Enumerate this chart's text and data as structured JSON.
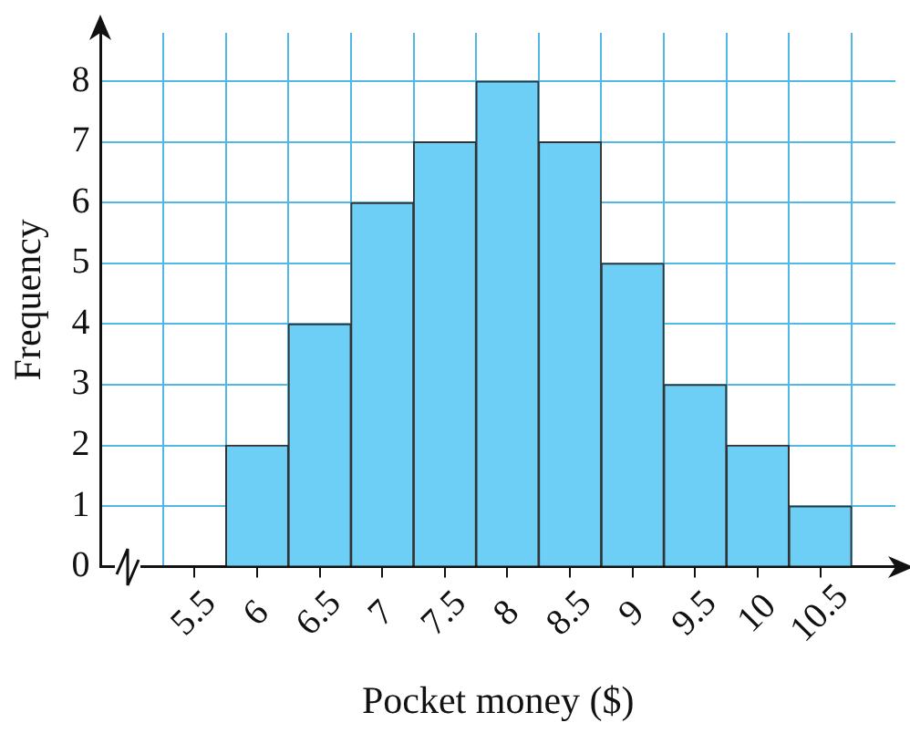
{
  "chart_data": {
    "type": "histogram",
    "xlabel": "Pocket money ($)",
    "ylabel": "Frequency",
    "bins": [
      5.75,
      6.25,
      6.75,
      7.25,
      7.75,
      8.25,
      8.75,
      9.25,
      9.75,
      10.25,
      10.75
    ],
    "values": [
      2,
      4,
      6,
      7,
      8,
      7,
      5,
      3,
      2,
      1
    ],
    "color": "#6dcff6",
    "xlim": [
      4.75,
      11.1
    ],
    "xticks": [
      {
        "value": 5.25,
        "label": null
      },
      5.5,
      {
        "value": 5.75,
        "label": null
      },
      6,
      {
        "value": 6.25,
        "label": null
      },
      6.5,
      {
        "value": 6.75,
        "label": null
      },
      7,
      {
        "value": 7.25,
        "label": null
      },
      7.5,
      {
        "value": 7.75,
        "label": null
      },
      8,
      {
        "value": 8.25,
        "label": null
      },
      8.5,
      {
        "value": 8.75,
        "label": null
      },
      9,
      {
        "value": 9.25,
        "label": null
      },
      9.5,
      {
        "value": 9.75,
        "label": null
      },
      10,
      {
        "value": 10.25,
        "label": null
      },
      10.5,
      {
        "value": 10.75,
        "label": null
      }
    ],
    "ylim": [
      0,
      8.8
    ],
    "yticks": [
      0,
      1,
      2,
      3,
      4,
      5,
      6,
      7,
      8
    ],
    "grid": true
  }
}
